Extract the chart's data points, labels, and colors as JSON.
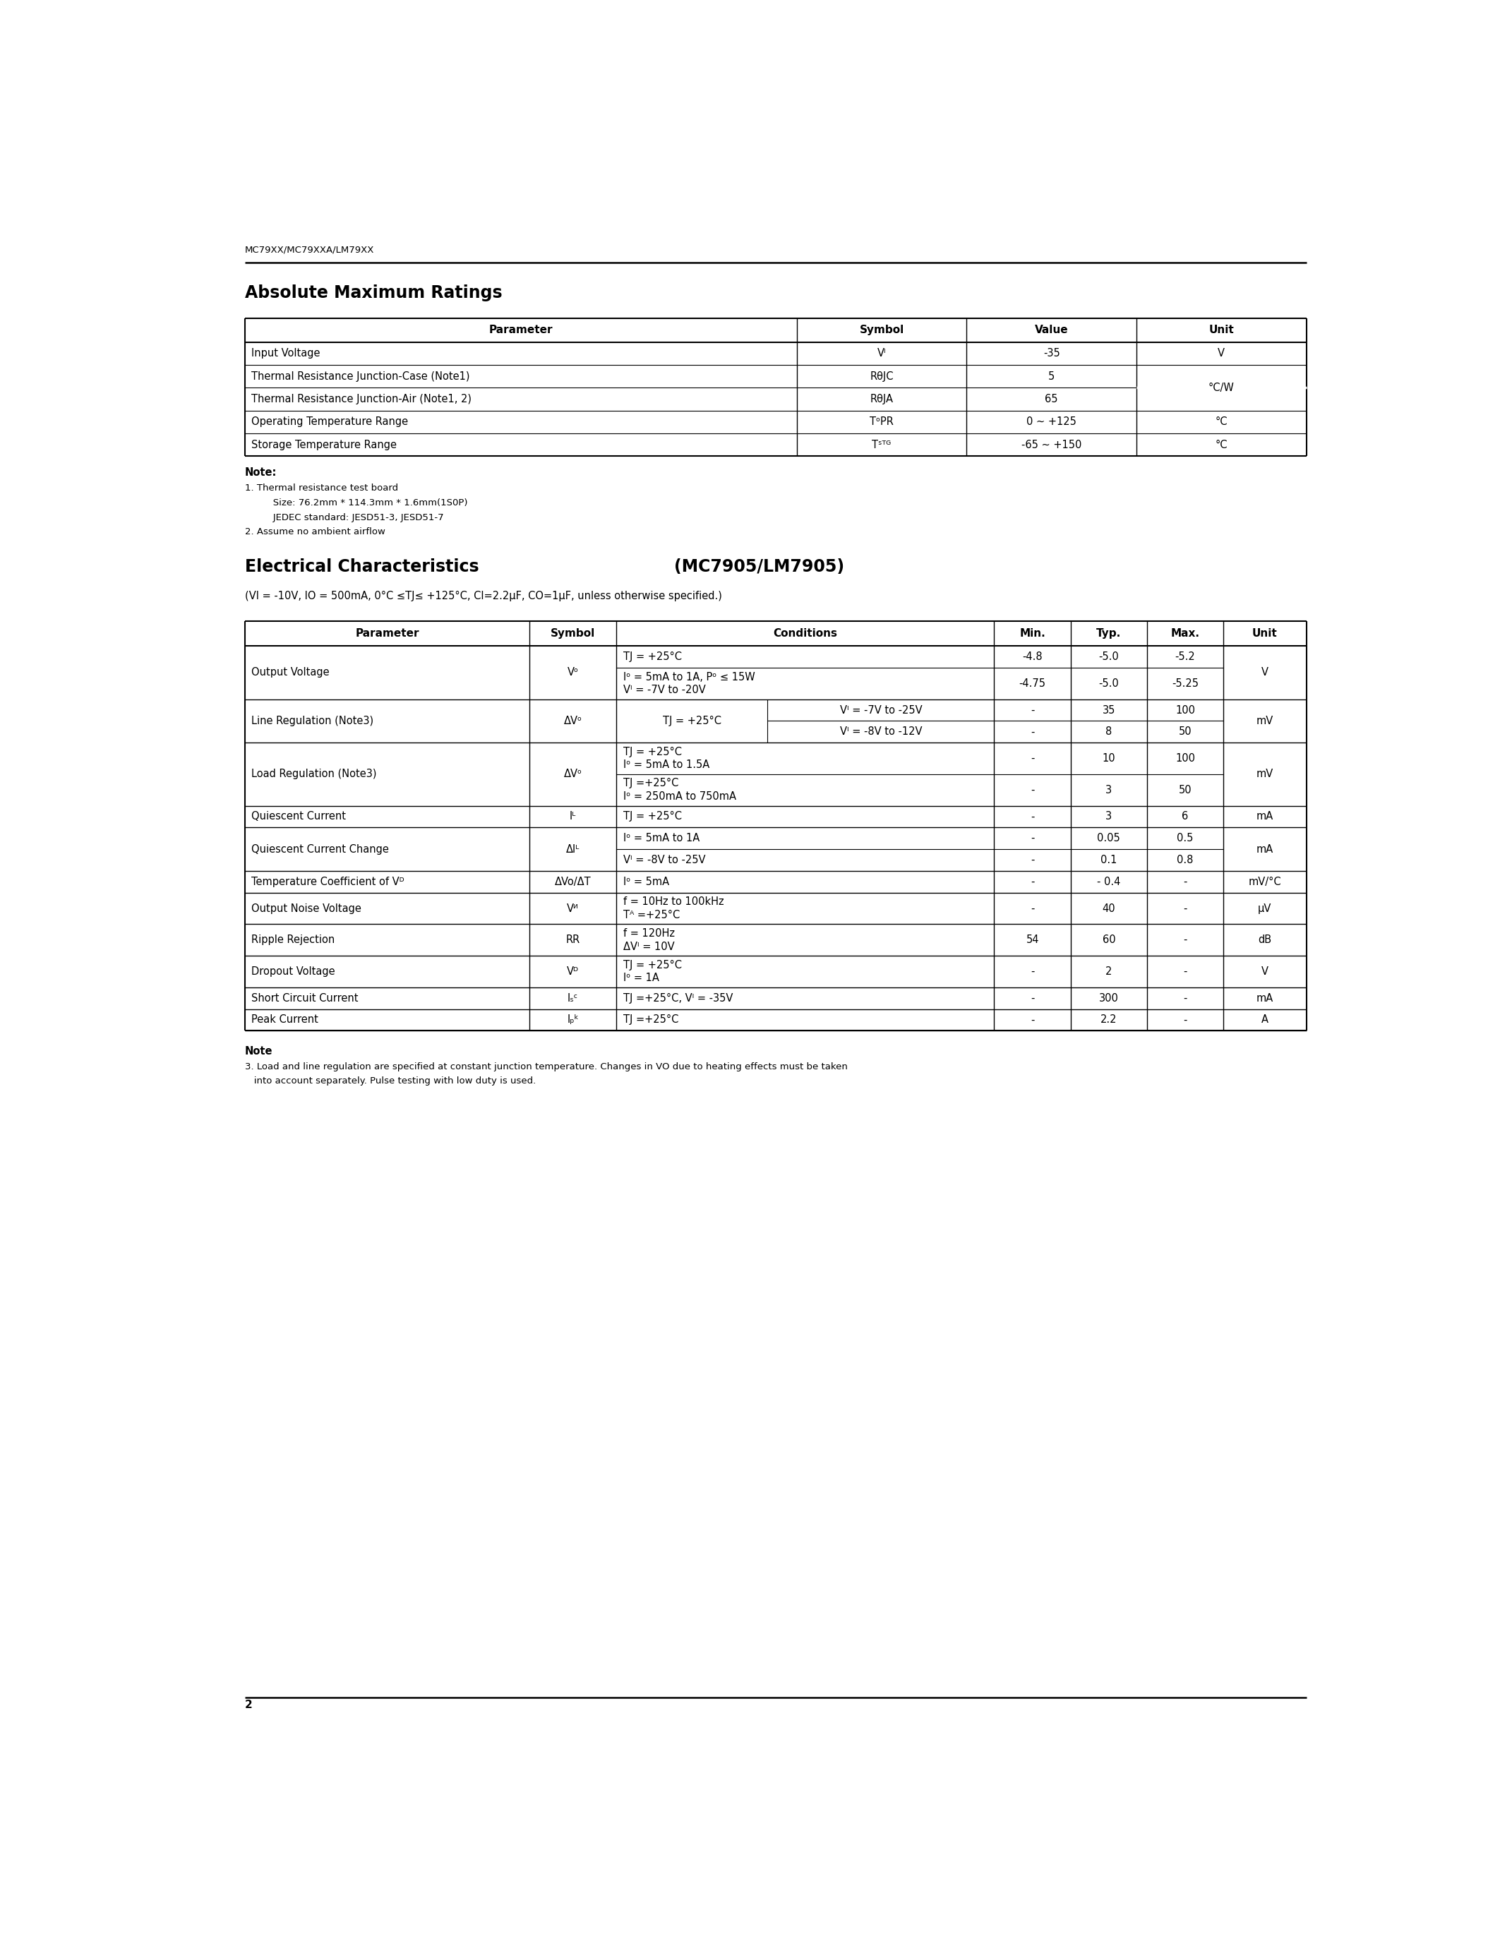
{
  "header_text": "MC79XX/MC79XXA/LM79XX",
  "page_number": "2",
  "bg_color": "#ffffff",
  "section1_title": "Absolute Maximum Ratings",
  "abs_max_headers": [
    "Parameter",
    "Symbol",
    "Value",
    "Unit"
  ],
  "section2_title_plain": "Electrical Characteristics (MC7905/LM7905)",
  "section2_title_bold": "Electrical Characteristics ",
  "section2_title_paren": "(MC7905/LM7905)",
  "section2_subtitle": "(VI = -10V, IO = 500mA, 0°C ≤TJ≤ +125°C, CI=2.2μF, CO=1μF, unless otherwise specified.)",
  "elec_note_title": "Note",
  "elec_note_line1": "3. Load and line regulation are specified at constant junction temperature. Changes in VO due to heating effects must be taken",
  "elec_note_line2": "   into account separately. Pulse testing with low duty is used."
}
